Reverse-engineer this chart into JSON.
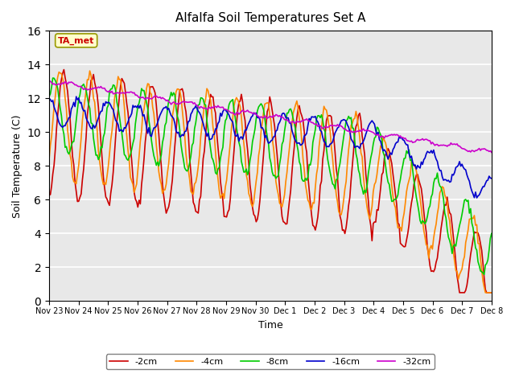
{
  "title": "Alfalfa Soil Temperatures Set A",
  "xlabel": "Time",
  "ylabel": "Soil Temperature (C)",
  "ylim": [
    0,
    16
  ],
  "yticks": [
    0,
    2,
    4,
    6,
    8,
    10,
    12,
    14,
    16
  ],
  "colors": {
    "-2cm": "#cc0000",
    "-4cm": "#ff8800",
    "-8cm": "#00cc00",
    "-16cm": "#0000cc",
    "-32cm": "#cc00cc"
  },
  "bg_color": "#e8e8e8",
  "annotation_text": "TA_met",
  "annotation_bg": "#ffffcc",
  "annotation_text_color": "#cc0000",
  "day_labels": [
    "Nov 23",
    "Nov 24",
    "Nov 25",
    "Nov 26",
    "Nov 27",
    "Nov 28",
    "Nov 29",
    "Nov 30",
    "Dec 1",
    "Dec 2",
    "Dec 3",
    "Dec 4",
    "Dec 5",
    "Dec 6",
    "Dec 7",
    "Dec 8"
  ],
  "n_days": 15,
  "n_pts": 360
}
